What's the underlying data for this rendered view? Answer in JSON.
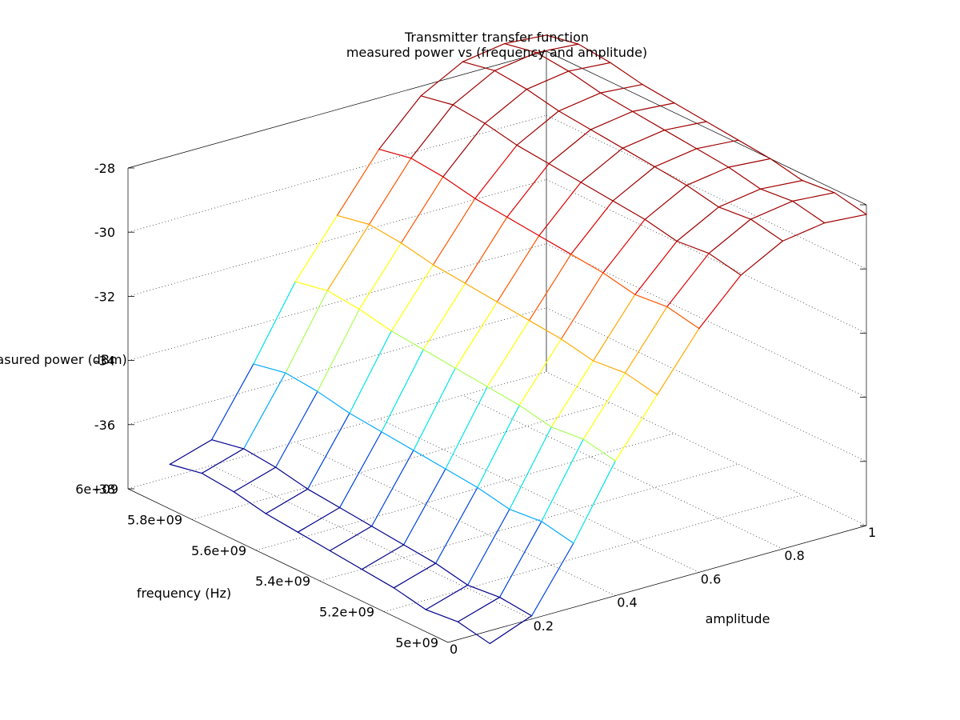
{
  "chart_data": {
    "type": "surface",
    "title": "Transmitter transfer function",
    "subtitle": "measured power vs (frequency and amplitude)",
    "xlabel": "amplitude",
    "ylabel": "frequency (Hz)",
    "zlabel": "measured power (dBm)",
    "x_ticks": [
      "0",
      "0.2",
      "0.4",
      "0.6",
      "0.8",
      "1"
    ],
    "y_ticks": [
      "5e+09",
      "5.2e+09",
      "5.4e+09",
      "5.6e+09",
      "5.8e+09",
      "6e+09"
    ],
    "z_ticks": [
      "-38",
      "-36",
      "-34",
      "-32",
      "-30",
      "-28"
    ],
    "xlim": [
      0,
      1
    ],
    "ylim": [
      5000000000,
      6000000000
    ],
    "zlim": [
      -38,
      -28
    ],
    "grid": true,
    "colormap": [
      "#00008b",
      "#0044e0",
      "#00aaff",
      "#00e5e5",
      "#aaff55",
      "#ffff00",
      "#ffaa00",
      "#ff5500",
      "#e00000",
      "#a00000"
    ],
    "amplitude": [
      0.1,
      0.2,
      0.3,
      0.4,
      0.5,
      0.6,
      0.7,
      0.8,
      0.9,
      1.0
    ],
    "frequency": [
      5000000000,
      5100000000,
      5200000000,
      5300000000,
      5400000000,
      5500000000,
      5600000000,
      5700000000,
      5800000000,
      5900000000,
      6000000000
    ],
    "power": [
      [
        -38.4,
        -38.2,
        -38.3,
        -38.1,
        -38.0,
        -37.9,
        -37.8,
        -37.7,
        -37.5,
        -37.4,
        -37.6
      ],
      [
        -37.9,
        -37.8,
        -37.9,
        -37.7,
        -37.6,
        -37.5,
        -37.4,
        -37.3,
        -37.1,
        -37.0,
        -37.2
      ],
      [
        -36.0,
        -35.8,
        -35.9,
        -35.7,
        -35.6,
        -35.5,
        -35.4,
        -35.3,
        -35.1,
        -35.0,
        -35.2
      ],
      [
        -33.8,
        -33.6,
        -33.7,
        -33.5,
        -33.4,
        -33.3,
        -33.2,
        -33.1,
        -32.9,
        -32.8,
        -33.0
      ],
      [
        -32.1,
        -31.9,
        -32.0,
        -31.8,
        -31.7,
        -31.6,
        -31.5,
        -31.4,
        -31.2,
        -31.1,
        -31.3
      ],
      [
        -30.4,
        -30.2,
        -30.3,
        -30.1,
        -30.0,
        -29.9,
        -29.8,
        -29.7,
        -29.5,
        -29.4,
        -29.6
      ],
      [
        -29.1,
        -28.9,
        -29.0,
        -28.8,
        -28.7,
        -28.6,
        -28.5,
        -28.4,
        -28.2,
        -28.1,
        -28.3
      ],
      [
        -28.4,
        -28.2,
        -28.3,
        -28.1,
        -28.0,
        -27.9,
        -27.8,
        -27.7,
        -27.5,
        -27.4,
        -27.6
      ],
      [
        -28.2,
        -28.0,
        -28.1,
        -27.9,
        -27.8,
        -27.7,
        -27.6,
        -27.5,
        -27.3,
        -27.2,
        -27.4
      ],
      [
        -28.3,
        -28.1,
        -28.2,
        -28.0,
        -27.9,
        -27.8,
        -27.7,
        -27.6,
        -27.4,
        -27.3,
        -27.5
      ]
    ]
  }
}
